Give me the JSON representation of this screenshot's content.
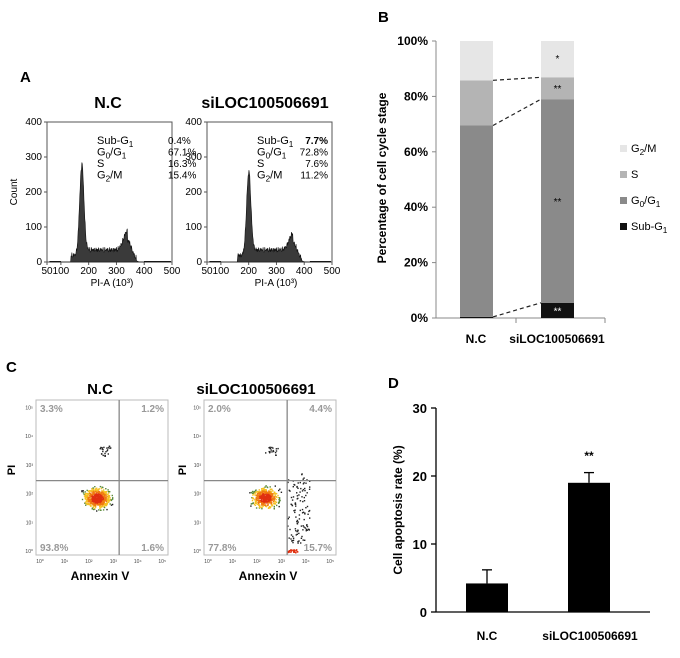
{
  "panel_labels": {
    "a": "A",
    "b": "B",
    "c": "C",
    "d": "D"
  },
  "chart_data": [
    {
      "panel": "A",
      "type": "histogram",
      "xlabel": "PI-A (10³)",
      "ylabel": "Count",
      "yticks": [
        0,
        100,
        200,
        300,
        400
      ],
      "xticks": [
        50,
        100,
        200,
        300,
        400,
        500
      ],
      "samples": [
        {
          "title": "N.C",
          "peaks": {
            "g1_pos": 175,
            "g1_height": 252,
            "g2_pos": 340,
            "g2_height": 55
          },
          "stats": [
            {
              "label": "Sub-G",
              "sub": "1",
              "value": "0.4%"
            },
            {
              "label": "G",
              "sub": "0",
              "label2": "/G",
              "sub2": "1",
              "value": "67.1%"
            },
            {
              "label": "S",
              "value": "16.3%"
            },
            {
              "label": "G",
              "sub": "2",
              "label2": "/M",
              "value": "15.4%"
            }
          ]
        },
        {
          "title": "siLOC100506691",
          "peaks": {
            "g1_pos": 200,
            "g1_height": 232,
            "g2_pos": 360,
            "g2_height": 48
          },
          "stats": [
            {
              "label": "Sub-G",
              "sub": "1",
              "value": "7.7%"
            },
            {
              "label": "G",
              "sub": "0",
              "label2": "/G",
              "sub2": "1",
              "value": "72.8%"
            },
            {
              "label": "S",
              "value": "7.6%"
            },
            {
              "label": "G",
              "sub": "2",
              "label2": "/M",
              "value": "11.2%"
            }
          ]
        }
      ]
    },
    {
      "panel": "B",
      "type": "stacked-bar",
      "ylabel": "Percentage of cell cycle stage",
      "yticks": [
        "0%",
        "20%",
        "40%",
        "60%",
        "80%",
        "100%"
      ],
      "categories": [
        "N.C",
        "siLOC100506691"
      ],
      "series": [
        {
          "name": "Sub-G1",
          "color": "#111111",
          "values": [
            0.4,
            5.5
          ]
        },
        {
          "name": "G0/G1",
          "color": "#8a8a8a",
          "values": [
            69.1,
            73.5
          ]
        },
        {
          "name": "S",
          "color": "#b4b4b4",
          "values": [
            16.3,
            7.9
          ]
        },
        {
          "name": "G2/M",
          "color": "#e6e6e6",
          "values": [
            14.2,
            13.1
          ]
        }
      ],
      "annotations": [
        "**",
        "**",
        "**",
        "*"
      ],
      "legend": [
        {
          "label": "G",
          "sub": "2",
          "label2": "/M",
          "color": "#e6e6e6"
        },
        {
          "label": "S",
          "color": "#b4b4b4"
        },
        {
          "label": "G",
          "sub": "0",
          "label2": "/G",
          "sub2": "1",
          "color": "#8a8a8a"
        },
        {
          "label": "Sub-G",
          "sub": "1",
          "color": "#111111"
        }
      ]
    },
    {
      "panel": "C",
      "type": "scatter",
      "xlabel": "Annexin V",
      "ylabel": "PI",
      "plots": [
        {
          "title": "N.C",
          "quadrants": {
            "ul": "3.3%",
            "ur": "1.2%",
            "ll": "93.8%",
            "lr": "1.6%"
          }
        },
        {
          "title": "siLOC100506691",
          "quadrants": {
            "ul": "2.0%",
            "ur": "4.4%",
            "ll": "77.8%",
            "lr": "15.7%"
          }
        }
      ]
    },
    {
      "panel": "D",
      "type": "bar",
      "ylabel": "Cell apoptosis rate (%)",
      "categories": [
        "N.C",
        "siLOC100506691"
      ],
      "values": [
        4.2,
        19.0
      ],
      "errors": [
        2.0,
        1.5
      ],
      "ylim": [
        0,
        30
      ],
      "yticks": [
        "0",
        "10",
        "20",
        "30"
      ],
      "significance": "**"
    }
  ]
}
